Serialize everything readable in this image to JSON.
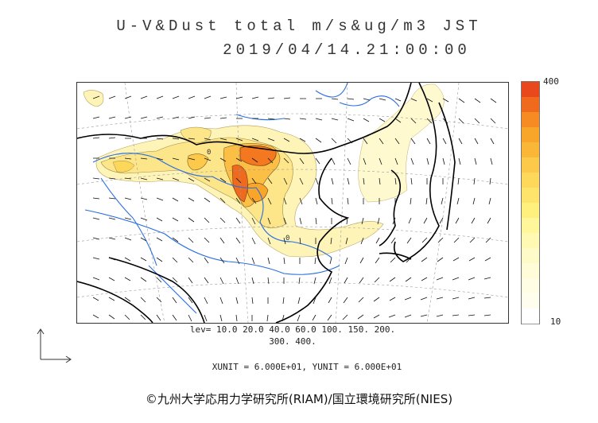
{
  "header": {
    "title": "U-V&Dust total m/s&ug/m3 JST",
    "datetime": "2019/04/14.21:00:00"
  },
  "legend": {
    "max_label": "400",
    "min_label": "10",
    "colors": [
      "#e8481c",
      "#f06a1e",
      "#f58b22",
      "#f8a62a",
      "#fab737",
      "#fcc94a",
      "#fdd85a",
      "#fee46b",
      "#fff07d",
      "#fff79a",
      "#fff9b4",
      "#fffbc9",
      "#fffcd8",
      "#fffde4",
      "#fffeee",
      "#ffffff"
    ]
  },
  "levels": {
    "line1": "lev= 10.0 20.0 40.0 60.0 100. 150. 200.",
    "line2": "300. 400."
  },
  "units": {
    "text": "XUNIT = 6.000E+01, YUNIT = 6.000E+01"
  },
  "footer": {
    "credit": "©九州大学応用力学研究所(RIAM)/国立環境研究所(NIES)"
  },
  "map": {
    "contour_labels": [
      "0",
      "0"
    ]
  }
}
